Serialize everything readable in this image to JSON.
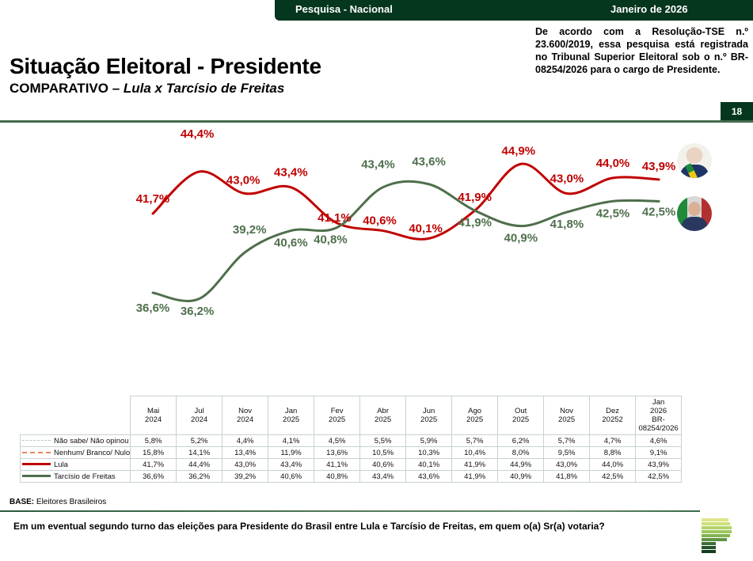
{
  "header": {
    "survey_label": "Pesquisa - Nacional",
    "date_label": "Janeiro de 2026"
  },
  "title": "Situação Eleitoral - Presidente",
  "subtitle": {
    "prefix": "COMPARATIVO – ",
    "italic": "Lula x Tarcísio de Freitas"
  },
  "notice": "De acordo com a Resolução-TSE n.º 23.600/2019, essa pesquisa está registrada no Tribunal Superior Eleitoral sob o n.º BR-08254/2026 para o cargo de Presidente.",
  "page_number": "18",
  "colors": {
    "brand_dark_green": "#05361e",
    "lula": "#c00000",
    "tarcisio": "#4e6f4c",
    "nao_sabe": "#b9c2c6",
    "nenhum": "#e8875a"
  },
  "chart_data": {
    "type": "line",
    "title": "Situação Eleitoral - Presidente",
    "xlabel": "",
    "ylabel": "",
    "ylim": [
      35,
      46
    ],
    "grid": false,
    "legend": "table-below",
    "categories": [
      "Mai 2024",
      "Jul 2024",
      "Nov 2024",
      "Jan 2025",
      "Fev 2025",
      "Abr 2025",
      "Jun 2025",
      "Ago 2025",
      "Out 2025",
      "Nov 2025",
      "Dez 20252",
      "Jan 2026 BR-08254/2026"
    ],
    "series": [
      {
        "name": "Lula",
        "color": "#c00000",
        "values": [
          41.7,
          44.4,
          43.0,
          43.4,
          41.1,
          40.6,
          40.1,
          41.9,
          44.9,
          43.0,
          44.0,
          43.9
        ],
        "labels": [
          "41,7%",
          "44,4%",
          "43,0%",
          "43,4%",
          "41,1%",
          "40,6%",
          "40,1%",
          "41,9%",
          "44,9%",
          "43,0%",
          "44,0%",
          "43,9%"
        ]
      },
      {
        "name": "Tarcísio de Freitas",
        "color": "#4e6f4c",
        "values": [
          36.6,
          36.2,
          39.2,
          40.6,
          40.8,
          43.4,
          43.6,
          41.9,
          40.9,
          41.8,
          42.5,
          42.5
        ],
        "labels": [
          "36,6%",
          "36,2%",
          "39,2%",
          "40,6%",
          "40,8%",
          "43,4%",
          "43,6%",
          "41,9%",
          "40,9%",
          "41,8%",
          "42,5%",
          "42,5%"
        ]
      }
    ],
    "photos": [
      {
        "name": "Lula",
        "icon": "lula-photo"
      },
      {
        "name": "Tarcísio de Freitas",
        "icon": "tarcisio-photo"
      }
    ]
  },
  "table": {
    "columns": [
      [
        "Mai",
        "2024"
      ],
      [
        "Jul",
        "2024"
      ],
      [
        "Nov",
        "2024"
      ],
      [
        "Jan",
        "2025"
      ],
      [
        "Fev",
        "2025"
      ],
      [
        "Abr",
        "2025"
      ],
      [
        "Jun",
        "2025"
      ],
      [
        "Ago",
        "2025"
      ],
      [
        "Out",
        "2025"
      ],
      [
        "Nov",
        "2025"
      ],
      [
        "Dez",
        "20252"
      ],
      [
        "Jan",
        "2026",
        "BR-",
        "08254/2026"
      ]
    ],
    "rows": [
      {
        "label": "Não sabe/ Não opinou",
        "swatch": "dashed-gray",
        "values": [
          "5,8%",
          "5,2%",
          "4,4%",
          "4,1%",
          "4,5%",
          "5,5%",
          "5,9%",
          "5,7%",
          "6,2%",
          "5,7%",
          "4,7%",
          "4,6%"
        ]
      },
      {
        "label": "Nenhum/ Branco/ Nulo",
        "swatch": "dashed-orange",
        "values": [
          "15,8%",
          "14,1%",
          "13,4%",
          "11,9%",
          "13,6%",
          "10,5%",
          "10,3%",
          "10,4%",
          "8,0%",
          "9,5%",
          "8,8%",
          "9,1%"
        ]
      },
      {
        "label": "Lula",
        "swatch": "solid-red",
        "values": [
          "41,7%",
          "44,4%",
          "43,0%",
          "43,4%",
          "41,1%",
          "40,6%",
          "40,1%",
          "41,9%",
          "44,9%",
          "43,0%",
          "44,0%",
          "43,9%"
        ]
      },
      {
        "label": "Tarcísio de Freitas",
        "swatch": "solid-green",
        "values": [
          "36,6%",
          "36,2%",
          "39,2%",
          "40,6%",
          "40,8%",
          "43,4%",
          "43,6%",
          "41,9%",
          "40,9%",
          "41,8%",
          "42,5%",
          "42,5%"
        ]
      }
    ]
  },
  "footer": {
    "base_label": "BASE:",
    "base_value": "Eleitores Brasileiros",
    "question": "Em um eventual segundo turno das eleições para Presidente do Brasil entre Lula e Tarcísio de Freitas, em quem o(a) Sr(a) votaria?",
    "logo_icon": "company-logo-icon"
  }
}
